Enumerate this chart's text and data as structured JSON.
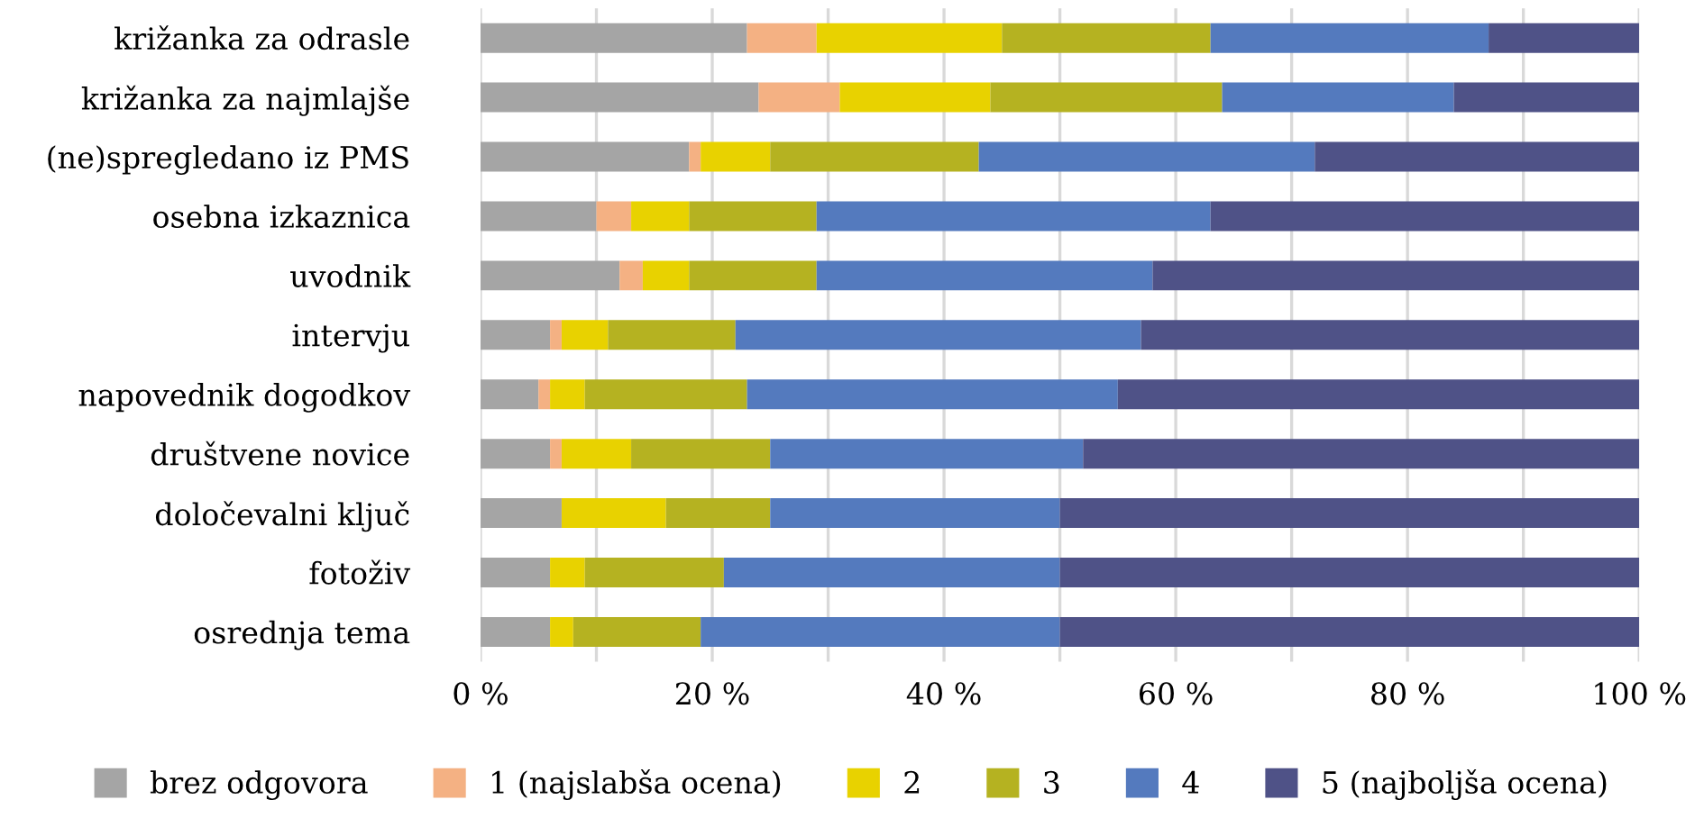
{
  "chart_data": {
    "type": "bar",
    "orientation": "horizontal",
    "stacked": true,
    "categories": [
      "križanka za odrasle",
      "križanka za najmlajše",
      "(ne)spregledano iz PMS",
      "osebna izkaznica",
      "uvodnik",
      "intervju",
      "napovednik dogodkov",
      "društvene novice",
      "določevalni ključ",
      "fotoživ",
      "osrednja tema"
    ],
    "series": [
      {
        "name": "brez odgovora",
        "color": "#a5a5a5",
        "values": [
          23,
          24,
          18,
          10,
          12,
          6,
          5,
          6,
          7,
          6,
          6
        ]
      },
      {
        "name": "1 (najslabša ocena)",
        "color": "#f4b183",
        "values": [
          6,
          7,
          1,
          3,
          2,
          1,
          1,
          1,
          0,
          0,
          0
        ]
      },
      {
        "name": "2",
        "color": "#e8d200",
        "values": [
          16,
          13,
          6,
          5,
          4,
          4,
          3,
          6,
          9,
          3,
          2
        ]
      },
      {
        "name": "3",
        "color": "#b5b221",
        "values": [
          18,
          20,
          18,
          11,
          11,
          11,
          14,
          12,
          9,
          12,
          11
        ]
      },
      {
        "name": "4",
        "color": "#547abe",
        "values": [
          24,
          20,
          29,
          34,
          29,
          35,
          32,
          27,
          25,
          29,
          31
        ]
      },
      {
        "name": "5 (najboljša ocena)",
        "color": "#4f5287",
        "values": [
          13,
          16,
          28,
          37,
          42,
          43,
          45,
          48,
          50,
          50,
          50
        ]
      }
    ],
    "xlim": [
      0,
      100
    ],
    "xticks": [
      {
        "value": 0,
        "label": "0 %"
      },
      {
        "value": 10,
        "label": null
      },
      {
        "value": 20,
        "label": "20 %"
      },
      {
        "value": 30,
        "label": null
      },
      {
        "value": 40,
        "label": "40 %"
      },
      {
        "value": 50,
        "label": null
      },
      {
        "value": 60,
        "label": "60 %"
      },
      {
        "value": 70,
        "label": null
      },
      {
        "value": 80,
        "label": "80 %"
      },
      {
        "value": 90,
        "label": null
      },
      {
        "value": 100,
        "label": "100 %"
      }
    ],
    "grid": "x",
    "legend": "bottom"
  }
}
